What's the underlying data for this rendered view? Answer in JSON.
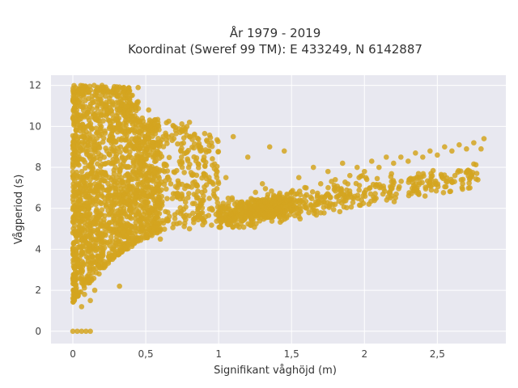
{
  "chart_data": {
    "type": "scatter",
    "title_line1": "År 1979 - 2019",
    "title_line2": "Koordinat (Sweref 99 TM): E 433249, N 6142887",
    "xlabel": "Signifikant våghöjd (m)",
    "ylabel": "Vågperiod (s)",
    "xlim": [
      -0.15,
      2.97
    ],
    "ylim": [
      -0.6,
      12.5
    ],
    "xticks": [
      0,
      0.5,
      1,
      1.5,
      2,
      2.5
    ],
    "xtick_labels": [
      "0",
      "0,5",
      "1",
      "1,5",
      "2",
      "2,5"
    ],
    "yticks": [
      0,
      2,
      4,
      6,
      8,
      10,
      12
    ],
    "ytick_labels": [
      "0",
      "2",
      "4",
      "6",
      "8",
      "10",
      "12"
    ],
    "grid": true,
    "marker_color": "#d4a520",
    "background_color": "#e8e8f0",
    "series": [
      {
        "values": [
          [
            0.0,
            0.0
          ],
          [
            0.03,
            0.0
          ],
          [
            0.06,
            0.0
          ],
          [
            0.09,
            0.0
          ],
          [
            0.12,
            0.0
          ],
          [
            0.01,
            1.5
          ],
          [
            0.02,
            2.5
          ],
          [
            0.03,
            3.5
          ],
          [
            0.02,
            4.7
          ],
          [
            0.04,
            6.0
          ],
          [
            0.03,
            7.5
          ],
          [
            0.05,
            8.8
          ],
          [
            0.06,
            1.2
          ],
          [
            0.08,
            1.8
          ],
          [
            0.1,
            2.6
          ],
          [
            0.12,
            1.5
          ],
          [
            0.08,
            3.8
          ],
          [
            0.1,
            5.2
          ],
          [
            0.07,
            9.5
          ],
          [
            0.15,
            2.0
          ],
          [
            0.18,
            2.8
          ],
          [
            0.15,
            4.0
          ],
          [
            0.13,
            6.5
          ],
          [
            0.12,
            8.0
          ],
          [
            0.1,
            10.0
          ],
          [
            0.2,
            3.2
          ],
          [
            0.22,
            5.0
          ],
          [
            0.2,
            7.0
          ],
          [
            0.18,
            9.0
          ],
          [
            0.17,
            11.0
          ],
          [
            0.2,
            12.0
          ],
          [
            0.25,
            3.8
          ],
          [
            0.28,
            5.5
          ],
          [
            0.3,
            7.5
          ],
          [
            0.27,
            9.5
          ],
          [
            0.25,
            11.2
          ],
          [
            0.28,
            11.8
          ],
          [
            0.32,
            2.2
          ],
          [
            0.35,
            4.6
          ],
          [
            0.35,
            6.0
          ],
          [
            0.38,
            8.5
          ],
          [
            0.36,
            10.5
          ],
          [
            0.35,
            11.9
          ],
          [
            0.4,
            4.8
          ],
          [
            0.45,
            6.5
          ],
          [
            0.42,
            9.0
          ],
          [
            0.4,
            11.5
          ],
          [
            0.47,
            8.0
          ],
          [
            0.5,
            5.0
          ],
          [
            0.55,
            6.8
          ],
          [
            0.55,
            9.8
          ],
          [
            0.52,
            10.8
          ],
          [
            0.6,
            4.5
          ],
          [
            0.6,
            6.0
          ],
          [
            0.65,
            7.5
          ],
          [
            0.62,
            9.5
          ],
          [
            0.7,
            5.5
          ],
          [
            0.75,
            8.0
          ],
          [
            0.8,
            5.0
          ],
          [
            0.85,
            6.5
          ],
          [
            0.8,
            10.2
          ],
          [
            0.9,
            8.5
          ],
          [
            0.95,
            6.0
          ],
          [
            1.0,
            5.8
          ],
          [
            1.05,
            7.5
          ],
          [
            1.1,
            9.5
          ],
          [
            1.15,
            6.3
          ],
          [
            1.2,
            8.5
          ],
          [
            1.25,
            6.2
          ],
          [
            1.3,
            7.2
          ],
          [
            1.35,
            9.0
          ],
          [
            1.4,
            6.5
          ],
          [
            1.45,
            8.8
          ],
          [
            1.5,
            6.8
          ],
          [
            1.55,
            7.5
          ],
          [
            1.6,
            7.0
          ],
          [
            1.65,
            8.0
          ],
          [
            1.7,
            7.2
          ],
          [
            1.75,
            7.8
          ],
          [
            1.8,
            7.4
          ],
          [
            1.85,
            8.2
          ],
          [
            1.9,
            7.6
          ],
          [
            1.95,
            8.0
          ],
          [
            2.0,
            7.8
          ],
          [
            2.05,
            8.3
          ],
          [
            2.1,
            8.0
          ],
          [
            2.15,
            8.5
          ],
          [
            2.2,
            8.2
          ],
          [
            2.25,
            8.5
          ],
          [
            2.3,
            8.3
          ],
          [
            2.35,
            8.7
          ],
          [
            2.4,
            8.5
          ],
          [
            2.45,
            8.8
          ],
          [
            2.5,
            8.6
          ],
          [
            2.55,
            9.0
          ],
          [
            2.6,
            8.8
          ],
          [
            2.65,
            9.1
          ],
          [
            2.7,
            8.9
          ],
          [
            2.75,
            9.2
          ],
          [
            2.8,
            8.9
          ],
          [
            2.82,
            9.4
          ]
        ]
      }
    ]
  }
}
